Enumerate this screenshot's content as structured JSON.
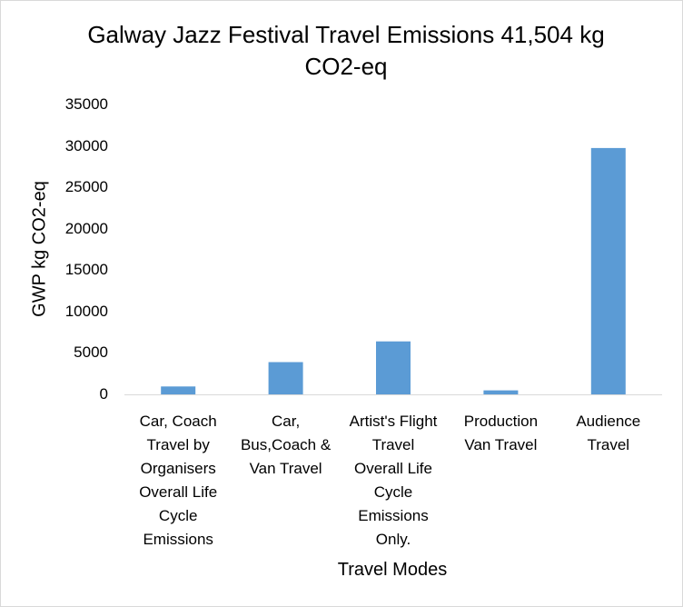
{
  "chart_data": {
    "type": "bar",
    "title": "Galway Jazz Festival Travel Emissions 41,504 kg CO2-eq",
    "title_lines": [
      "Galway Jazz Festival Travel Emissions 41,504 kg",
      "CO2-eq"
    ],
    "xlabel": "Travel Modes",
    "ylabel": "GWP kg CO2-eq",
    "categories": [
      "Car, Coach Travel by Organisers Overall  Life Cycle Emissions",
      "Car, Bus,Coach & Van Travel",
      "Artist's Flight Travel Overall Life Cycle Emissions Only.",
      "Production Van Travel",
      "Audience Travel"
    ],
    "category_lines": [
      [
        "Car, Coach",
        "Travel by",
        "Organisers",
        "Overall  Life",
        "Cycle",
        "Emissions"
      ],
      [
        "Car,",
        "Bus,Coach &",
        "Van Travel"
      ],
      [
        "Artist's Flight",
        "Travel",
        "Overall Life",
        "Cycle",
        "Emissions",
        "Only."
      ],
      [
        "Production",
        "Van Travel"
      ],
      [
        "Audience",
        "Travel"
      ]
    ],
    "values": [
      950,
      3900,
      6400,
      480,
      29750
    ],
    "ylim": [
      0,
      35000
    ],
    "yticks": [
      "0",
      "5000",
      "10000",
      "15000",
      "20000",
      "25000",
      "30000",
      "35000"
    ],
    "grid": false,
    "legend": "none",
    "bar_color": "#5b9bd5",
    "axis_color": "#d9d9d9"
  }
}
